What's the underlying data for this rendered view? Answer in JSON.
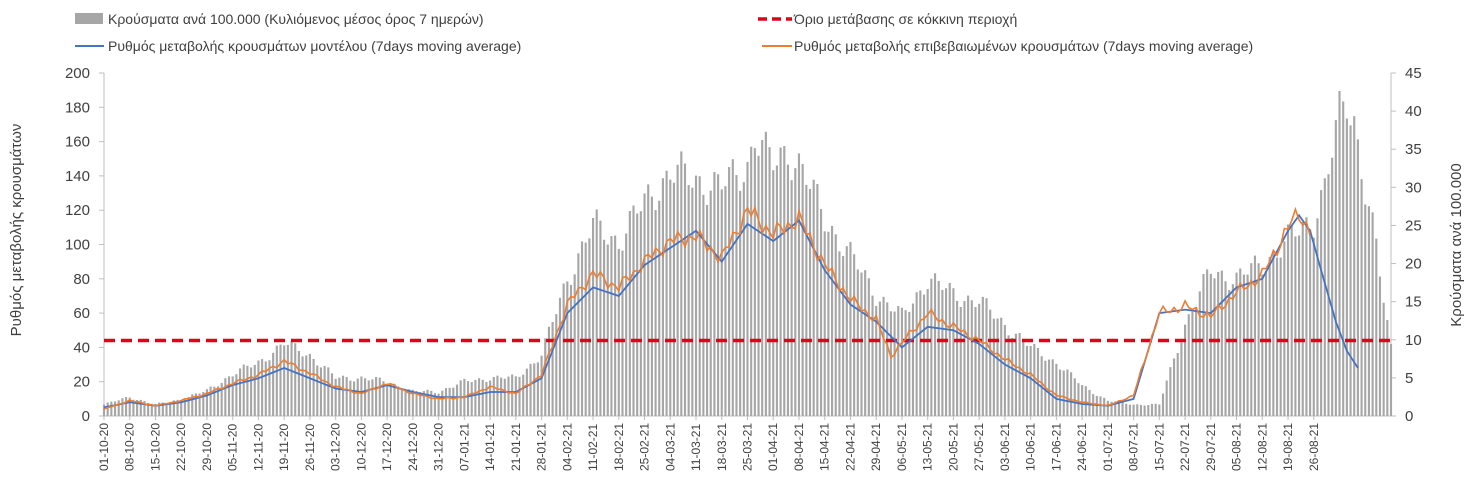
{
  "chart_data": {
    "type": "bar+line",
    "legend": {
      "bars": "Κρούσματα ανά 100.000 (Κυλιόμενος μέσος όρος 7 ημερών)",
      "threshold": "Όριο μετάβασης σε κόκκινη περιοχή",
      "model_line": "Ρυθμός μεταβολής κρουσμάτων μοντέλου (7days moving average)",
      "confirmed_line": "Ρυθμός μεταβολής επιβεβαιωμένων κρουσμάτων (7days moving average)"
    },
    "ylabel_left": "Ρυθμός μεταβολής κρουσμάτων",
    "ylabel_right": "Κρούσματα ανά 100.000",
    "ylim_left": [
      0,
      200
    ],
    "yticks_left": [
      0,
      20,
      40,
      60,
      80,
      100,
      120,
      140,
      160,
      180,
      200
    ],
    "ylim_right": [
      0,
      45
    ],
    "yticks_right": [
      0,
      5,
      10,
      15,
      20,
      25,
      30,
      35,
      40,
      45
    ],
    "x_start": "01-10-20",
    "x_tick_labels": [
      "01-10-20",
      "08-10-20",
      "15-10-20",
      "22-10-20",
      "29-10-20",
      "05-11-20",
      "12-11-20",
      "19-11-20",
      "26-11-20",
      "03-12-20",
      "10-12-20",
      "17-12-20",
      "24-12-20",
      "31-12-20",
      "07-01-21",
      "14-01-21",
      "21-01-21",
      "28-01-21",
      "04-02-21",
      "11-02-21",
      "18-02-21",
      "25-02-21",
      "04-03-21",
      "11-03-21",
      "18-03-21",
      "25-03-21",
      "01-04-21",
      "08-04-21",
      "15-04-21",
      "22-04-21",
      "29-04-21",
      "06-05-21",
      "13-05-21",
      "20-05-21",
      "27-05-21",
      "03-06-21",
      "10-06-21",
      "17-06-21",
      "24-06-21",
      "01-07-21",
      "08-07-21",
      "15-07-21",
      "22-07-21",
      "29-07-21",
      "05-08-21",
      "12-08-21",
      "19-08-21",
      "26-08-21"
    ],
    "threshold_value": 44,
    "bars_per_100k_keypoints": [
      [
        0,
        1.5
      ],
      [
        7,
        2.5
      ],
      [
        14,
        1.5
      ],
      [
        21,
        2.2
      ],
      [
        28,
        3.3
      ],
      [
        35,
        5.5
      ],
      [
        42,
        7
      ],
      [
        49,
        9.5
      ],
      [
        56,
        8
      ],
      [
        63,
        5
      ],
      [
        70,
        5
      ],
      [
        77,
        4.5
      ],
      [
        84,
        3.2
      ],
      [
        91,
        3.2
      ],
      [
        98,
        4.5
      ],
      [
        105,
        5
      ],
      [
        112,
        5
      ],
      [
        119,
        8
      ],
      [
        126,
        18
      ],
      [
        133,
        25
      ],
      [
        140,
        23
      ],
      [
        147,
        28
      ],
      [
        154,
        32
      ],
      [
        161,
        31
      ],
      [
        168,
        30
      ],
      [
        175,
        33
      ],
      [
        177,
        37
      ],
      [
        180,
        34
      ],
      [
        182,
        33
      ],
      [
        186,
        35
      ],
      [
        189,
        33
      ],
      [
        196,
        26
      ],
      [
        203,
        21
      ],
      [
        210,
        16
      ],
      [
        217,
        13
      ],
      [
        224,
        18
      ],
      [
        231,
        16
      ],
      [
        238,
        15
      ],
      [
        245,
        12
      ],
      [
        252,
        9
      ],
      [
        259,
        7
      ],
      [
        266,
        4
      ],
      [
        273,
        2
      ],
      [
        280,
        1.5
      ],
      [
        287,
        1.5
      ],
      [
        294,
        12
      ],
      [
        301,
        19
      ],
      [
        308,
        18
      ],
      [
        315,
        20
      ],
      [
        322,
        23
      ],
      [
        329,
        26
      ],
      [
        332,
        30
      ],
      [
        336,
        39
      ],
      [
        338,
        41.5
      ],
      [
        340,
        39
      ],
      [
        343,
        30
      ],
      [
        346,
        22
      ],
      [
        348,
        15
      ],
      [
        350,
        9
      ]
    ],
    "model_rate_keypoints": [
      [
        0,
        5
      ],
      [
        7,
        8
      ],
      [
        14,
        6
      ],
      [
        21,
        8
      ],
      [
        28,
        12
      ],
      [
        35,
        18
      ],
      [
        42,
        22
      ],
      [
        49,
        28
      ],
      [
        56,
        22
      ],
      [
        63,
        16
      ],
      [
        70,
        14
      ],
      [
        77,
        18
      ],
      [
        84,
        14
      ],
      [
        91,
        11
      ],
      [
        98,
        11
      ],
      [
        105,
        14
      ],
      [
        112,
        14
      ],
      [
        119,
        22
      ],
      [
        126,
        60
      ],
      [
        133,
        75
      ],
      [
        140,
        70
      ],
      [
        147,
        88
      ],
      [
        154,
        98
      ],
      [
        161,
        108
      ],
      [
        168,
        90
      ],
      [
        175,
        112
      ],
      [
        182,
        102
      ],
      [
        189,
        114
      ],
      [
        196,
        85
      ],
      [
        203,
        65
      ],
      [
        210,
        55
      ],
      [
        217,
        40
      ],
      [
        224,
        52
      ],
      [
        231,
        50
      ],
      [
        238,
        42
      ],
      [
        245,
        30
      ],
      [
        252,
        22
      ],
      [
        259,
        10
      ],
      [
        266,
        7
      ],
      [
        273,
        6
      ],
      [
        280,
        10
      ],
      [
        287,
        60
      ],
      [
        294,
        62
      ],
      [
        301,
        60
      ],
      [
        308,
        75
      ],
      [
        315,
        80
      ],
      [
        322,
        108
      ],
      [
        325,
        117
      ],
      [
        328,
        108
      ],
      [
        331,
        85
      ],
      [
        335,
        55
      ],
      [
        338,
        38
      ],
      [
        341,
        28
      ]
    ],
    "confirmed_rate_keypoints": [
      [
        0,
        4
      ],
      [
        7,
        9
      ],
      [
        14,
        6
      ],
      [
        21,
        9
      ],
      [
        28,
        13
      ],
      [
        35,
        19
      ],
      [
        42,
        24
      ],
      [
        49,
        32
      ],
      [
        56,
        25
      ],
      [
        63,
        17
      ],
      [
        70,
        13
      ],
      [
        77,
        19
      ],
      [
        84,
        13
      ],
      [
        91,
        10
      ],
      [
        98,
        11
      ],
      [
        105,
        17
      ],
      [
        112,
        13
      ],
      [
        119,
        24
      ],
      [
        126,
        65
      ],
      [
        133,
        83
      ],
      [
        140,
        75
      ],
      [
        147,
        90
      ],
      [
        154,
        102
      ],
      [
        161,
        105
      ],
      [
        168,
        92
      ],
      [
        175,
        120
      ],
      [
        182,
        106
      ],
      [
        189,
        115
      ],
      [
        196,
        88
      ],
      [
        203,
        68
      ],
      [
        210,
        56
      ],
      [
        214,
        35
      ],
      [
        224,
        60
      ],
      [
        231,
        52
      ],
      [
        238,
        44
      ],
      [
        245,
        33
      ],
      [
        252,
        24
      ],
      [
        259,
        12
      ],
      [
        266,
        8
      ],
      [
        273,
        6
      ],
      [
        280,
        12
      ],
      [
        287,
        60
      ],
      [
        294,
        64
      ],
      [
        301,
        58
      ],
      [
        308,
        72
      ],
      [
        315,
        82
      ],
      [
        322,
        110
      ],
      [
        325,
        118
      ],
      [
        328,
        108
      ]
    ]
  }
}
